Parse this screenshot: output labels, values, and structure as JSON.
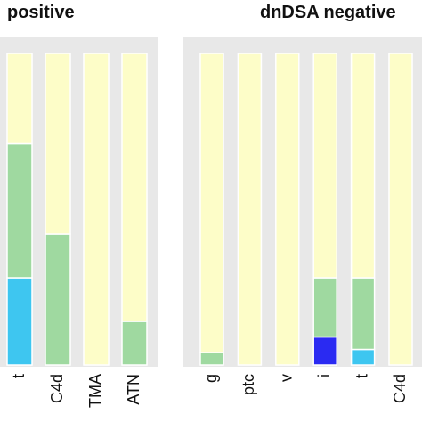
{
  "chart_data": [
    {
      "type": "stacked-bar",
      "title": "positive",
      "categories": [
        "t",
        "C4d",
        "TMA",
        "ATN"
      ],
      "ylim": [
        0,
        100
      ],
      "series": [
        {
          "color": "#3ec6f0",
          "values": [
            28,
            0,
            0,
            0
          ]
        },
        {
          "color": "#2a2af2",
          "values": [
            0,
            0,
            0,
            0
          ]
        },
        {
          "color": "#9fd9a0",
          "values": [
            43,
            42,
            0,
            14
          ]
        },
        {
          "color": "#fdfdc8",
          "values": [
            29,
            58,
            100,
            86
          ]
        }
      ]
    },
    {
      "type": "stacked-bar",
      "title": "dnDSA negative",
      "categories": [
        "g",
        "ptc",
        "v",
        "i",
        "t",
        "C4d"
      ],
      "ylim": [
        0,
        100
      ],
      "series": [
        {
          "color": "#3ec6f0",
          "values": [
            0,
            0,
            0,
            0,
            5,
            0
          ]
        },
        {
          "color": "#2a2af2",
          "values": [
            0,
            0,
            0,
            9,
            0,
            0
          ]
        },
        {
          "color": "#9fd9a0",
          "values": [
            4,
            0,
            0,
            19,
            23,
            0
          ]
        },
        {
          "color": "#fdfdc8",
          "values": [
            96,
            100,
            100,
            72,
            72,
            100
          ]
        }
      ]
    }
  ]
}
